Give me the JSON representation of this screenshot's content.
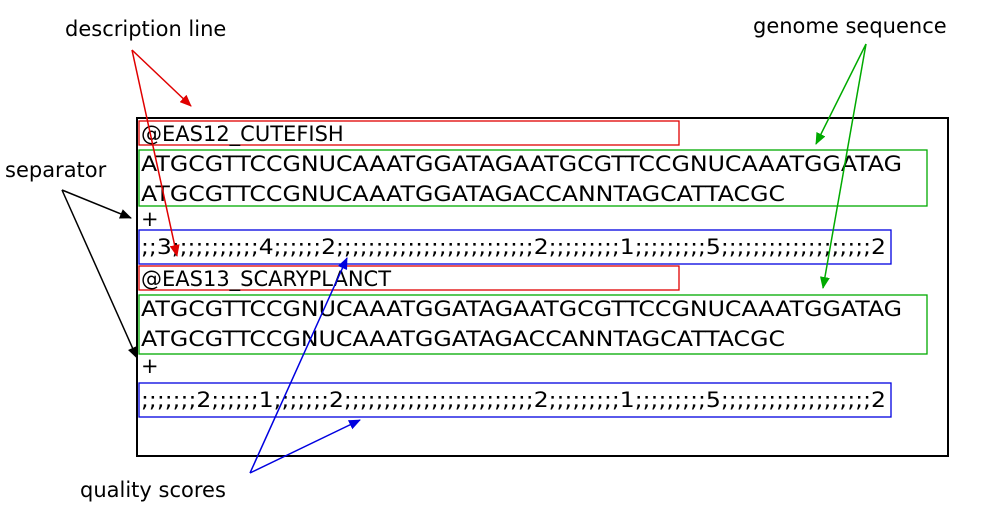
{
  "labels": {
    "description": "description line",
    "genome": "genome sequence",
    "separator": "separator",
    "quality": "quality scores"
  },
  "records": [
    {
      "id": "@EAS12_CUTEFISH",
      "seq1": "ATGCGTTCCGNUCAAATGGATAGAATGCGTTCCGNUCAAATGGATAG",
      "seq2": "ATGCGTTCCGNUCAAATGGATAGACCANNTAGCATTACGC",
      "sep": "+",
      "qual": ";;3;;;;;;;;;;;4;;;;;;2;;;;;;;;;;;;;;;;;;;;;;;;;2;;;;;;;;;1;;;;;;;;;5;;;;;;;;;;;;;;;;;;;2"
    },
    {
      "id": "@EAS13_SCARYPLANCT",
      "seq1": "ATGCGTTCCGNUCAAATGGATAGAATGCGTTCCGNUCAAATGGATAG",
      "seq2": "ATGCGTTCCGNUCAAATGGATAGACCANNTAGCATTACGC",
      "sep": "+",
      "qual": ";;;;;;;2;;;;;;1;;;;;;;2;;;;;;;;;;;;;;;;;;;;;;;;2;;;;;;;;;1;;;;;;;;;5;;;;;;;;;;;;;;;;;;;2"
    }
  ],
  "colors": {
    "description": "#e00000",
    "genome": "#00aa00",
    "quality": "#0000e0",
    "separator": "#000000",
    "frame": "#000000"
  }
}
